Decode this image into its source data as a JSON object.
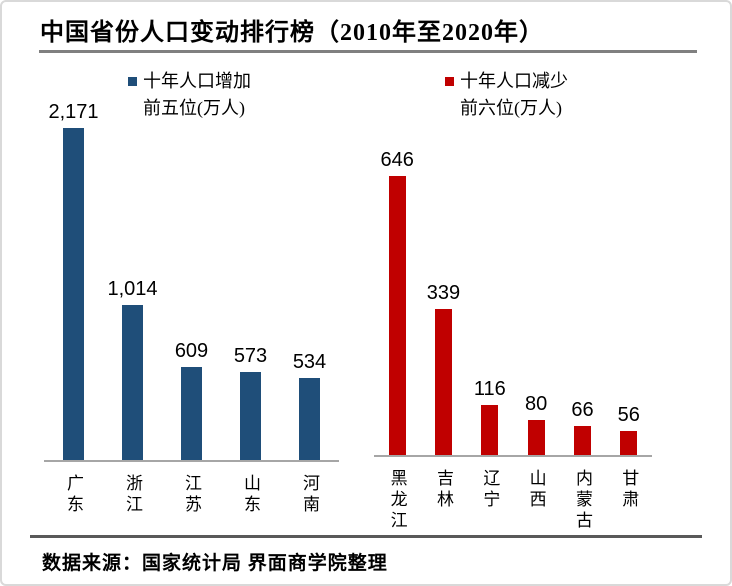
{
  "title": "中国省份人口变动排行榜（2010年至2020年）",
  "source": "数据来源：国家统计局 界面商学院整理",
  "colors": {
    "increase": "#1f4e79",
    "decrease": "#c00000",
    "title_rule": "#808080",
    "baseline": "#a6a6a6",
    "bottom_rule": "#595959"
  },
  "legends": {
    "increase": {
      "line1": "十年人口增加",
      "line2": "前五位(万人)"
    },
    "decrease": {
      "line1": "十年人口减少",
      "line2": "前六位(万人)"
    }
  },
  "chart_data": [
    {
      "type": "bar",
      "name": "population-increase-top5",
      "legend": "十年人口增加 前五位(万人)",
      "categories": [
        "广东",
        "浙江",
        "江苏",
        "山东",
        "河南"
      ],
      "values": [
        2171,
        1014,
        609,
        573,
        534
      ],
      "labels": [
        "2,171",
        "1,014",
        "609",
        "573",
        "534"
      ],
      "unit": "万人",
      "color": "#1f4e79",
      "ylim": [
        0,
        2171
      ],
      "grid": false,
      "legend_position": "top"
    },
    {
      "type": "bar",
      "name": "population-decrease-top6",
      "legend": "十年人口减少 前六位(万人)",
      "categories": [
        "黑龙江",
        "吉林",
        "辽宁",
        "山西",
        "内蒙古",
        "甘肃"
      ],
      "values": [
        646,
        339,
        116,
        80,
        66,
        56
      ],
      "labels": [
        "646",
        "339",
        "116",
        "80",
        "66",
        "56"
      ],
      "unit": "万人",
      "color": "#c00000",
      "ylim": [
        0,
        646
      ],
      "grid": false,
      "legend_position": "top"
    }
  ]
}
